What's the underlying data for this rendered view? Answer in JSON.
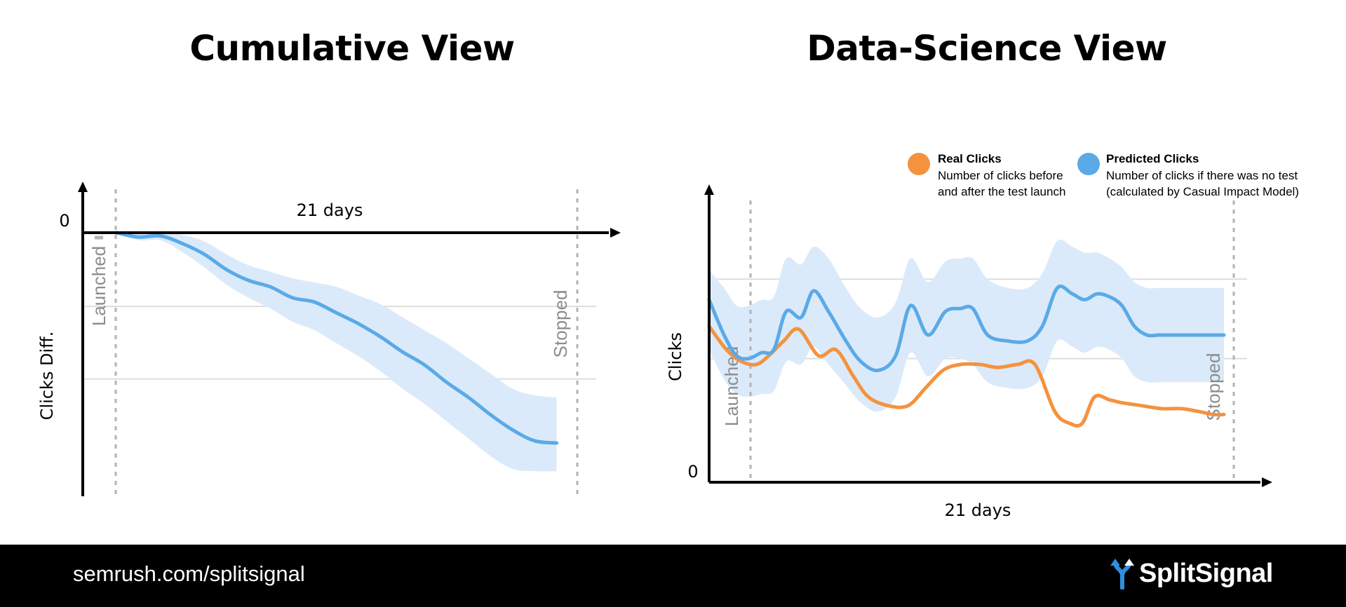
{
  "titles": {
    "left": "Cumulative View",
    "right": "Data-Science View"
  },
  "footer": {
    "url": "semrush.com/splitsignal",
    "brand": "SplitSignal",
    "brand_icon": "split-arrows-icon"
  },
  "colors": {
    "real": "#f5923e",
    "predicted": "#5aaae7",
    "band": "#dbeafa",
    "marker": "#b3b3b3",
    "grid": "#dddddd"
  },
  "chart_data": [
    {
      "type": "line",
      "title": "Cumulative View",
      "xlabel": "21 days",
      "ylabel": "Clicks Diff.",
      "ytick_labels": [
        "0"
      ],
      "events": [
        {
          "label": "Launched",
          "x": 0
        },
        {
          "label": "Stopped",
          "x": 21
        }
      ],
      "xlim": [
        -1.4,
        21
      ],
      "ylim": [
        -11,
        0.8
      ],
      "grid": true,
      "series": [
        {
          "x": [
            0,
            1,
            2,
            3,
            4,
            5,
            6,
            7,
            8,
            9,
            10,
            11,
            12,
            13,
            14,
            15,
            16,
            17,
            18,
            19,
            20
          ],
          "values": [
            0,
            -0.2,
            -0.15,
            -0.5,
            -1.0,
            -1.7,
            -2.2,
            -2.5,
            -3.0,
            -3.2,
            -3.7,
            -4.2,
            -4.8,
            -5.5,
            -6.1,
            -6.9,
            -7.6,
            -8.4,
            -9.1,
            -9.6,
            -9.7
          ],
          "lower": [
            0,
            -0.35,
            -0.35,
            -0.9,
            -1.6,
            -2.4,
            -3.0,
            -3.5,
            -4.1,
            -4.5,
            -5.1,
            -5.7,
            -6.4,
            -7.2,
            -7.9,
            -8.7,
            -9.5,
            -10.3,
            -10.9,
            -11.0,
            -11.0
          ],
          "upper": [
            0,
            0,
            0.05,
            -0.1,
            -0.4,
            -1.0,
            -1.5,
            -1.8,
            -2.1,
            -2.3,
            -2.5,
            -2.9,
            -3.3,
            -3.9,
            -4.5,
            -5.1,
            -5.8,
            -6.5,
            -7.2,
            -7.5,
            -7.6
          ]
        }
      ]
    },
    {
      "type": "line",
      "title": "Data-Science View",
      "xlabel": "21 days",
      "ylabel": "Clicks",
      "ytick_labels": [
        "0"
      ],
      "events": [
        {
          "label": "Launched",
          "x": 1.7
        },
        {
          "label": "Stopped",
          "x": 21.7
        }
      ],
      "xlim": [
        0,
        22.5
      ],
      "ylim": [
        0,
        10
      ],
      "grid": true,
      "legend": {
        "position": "top-right",
        "entries": [
          {
            "name": "Real Clicks",
            "desc": [
              "Number of clicks before",
              "and after the test launch"
            ],
            "color": "#f5923e"
          },
          {
            "name": "Predicted Clicks",
            "desc": [
              "Number of clicks if there was no test",
              "(calculated by Casual Impact Model)"
            ],
            "color": "#5aaae7"
          }
        ]
      },
      "series": [
        {
          "name": "Real Clicks",
          "x": [
            0,
            0.7,
            1.3,
            1.9,
            2.4,
            3.0,
            3.6,
            4.4,
            5.1,
            5.8,
            6.4,
            7.2,
            8.0,
            8.7,
            9.4,
            10.1,
            10.9,
            11.6,
            12.4,
            13.1,
            13.9,
            14.5,
            15.0,
            15.5,
            16.1,
            16.6,
            17.4,
            18.2,
            19.0,
            19.7,
            20.3,
            20.7
          ],
          "values": [
            5.3,
            4.5,
            4.1,
            4.0,
            4.3,
            4.8,
            5.2,
            4.3,
            4.5,
            3.6,
            2.9,
            2.6,
            2.6,
            3.2,
            3.8,
            4.0,
            4.0,
            3.9,
            4.0,
            4.0,
            2.4,
            2.0,
            2.0,
            2.9,
            2.8,
            2.7,
            2.6,
            2.5,
            2.5,
            2.4,
            2.3,
            2.3
          ]
        },
        {
          "name": "Predicted Clicks",
          "x": [
            0,
            0.6,
            1.1,
            1.6,
            2.1,
            2.6,
            3.1,
            3.7,
            4.2,
            4.8,
            5.5,
            6.1,
            6.8,
            7.5,
            8.1,
            8.8,
            9.5,
            10.1,
            10.6,
            11.2,
            12.0,
            12.8,
            13.4,
            14.0,
            14.6,
            15.1,
            15.6,
            16.1,
            16.6,
            17.1,
            17.6,
            18.1,
            18.6,
            19.1,
            19.6,
            20.0,
            20.4,
            20.7
          ],
          "values": [
            6.2,
            5.0,
            4.3,
            4.2,
            4.4,
            4.5,
            5.8,
            5.6,
            6.5,
            5.8,
            4.8,
            4.1,
            3.8,
            4.3,
            6.0,
            5.0,
            5.8,
            5.9,
            5.9,
            5.0,
            4.8,
            4.8,
            5.3,
            6.6,
            6.4,
            6.2,
            6.4,
            6.3,
            6.0,
            5.3,
            5.0,
            5.0,
            5.0,
            5.0,
            5.0,
            5.0,
            5.0,
            5.0
          ],
          "lower": [
            4.5,
            3.5,
            3.0,
            2.9,
            3.0,
            3.1,
            4.1,
            4.0,
            4.6,
            4.0,
            3.3,
            2.7,
            2.4,
            2.9,
            4.4,
            3.6,
            4.2,
            4.2,
            4.0,
            3.4,
            3.2,
            3.2,
            3.6,
            4.8,
            4.6,
            4.4,
            4.6,
            4.5,
            4.2,
            3.6,
            3.4,
            3.4,
            3.4,
            3.4,
            3.4,
            3.4,
            3.4,
            3.4
          ],
          "upper": [
            7.2,
            6.6,
            6.0,
            6.0,
            6.2,
            6.3,
            7.6,
            7.4,
            8.0,
            7.6,
            6.6,
            5.9,
            5.6,
            6.1,
            7.6,
            6.8,
            7.5,
            7.6,
            7.6,
            6.9,
            6.6,
            6.6,
            7.1,
            8.2,
            8.0,
            7.8,
            7.8,
            7.6,
            7.3,
            6.8,
            6.6,
            6.6,
            6.6,
            6.6,
            6.6,
            6.6,
            6.6,
            6.6
          ]
        }
      ]
    }
  ]
}
